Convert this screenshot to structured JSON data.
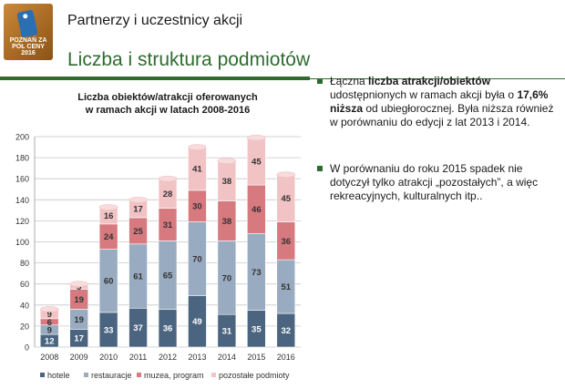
{
  "header": {
    "title": "Partnerzy i uczestnicy akcji",
    "logo_text": "POZNAŃ ZA PÓŁ CENY 2016"
  },
  "section_title": "Liczba i struktura podmiotów",
  "bullets": [
    {
      "segments": [
        {
          "text": "Łączna ",
          "bold": false
        },
        {
          "text": "liczba atrakcji/obiektów",
          "bold": true
        },
        {
          "text": " udostępnionych w ramach akcji była o ",
          "bold": false
        },
        {
          "text": "17,6% niższa",
          "bold": true
        },
        {
          "text": " od ubiegłorocznej. Była niższa również w porównaniu do edycji z lat 2013 i 2014.",
          "bold": false
        }
      ]
    },
    {
      "segments": [
        {
          "text": "W porównaniu do roku 2015 spadek nie dotyczył tylko atrakcji „pozostałych”, a więc rekreacyjnych, kulturalnych itp..",
          "bold": false
        }
      ]
    }
  ],
  "colors": {
    "accent": "#2f6b2f",
    "hotele": "#4b6580",
    "restauracje": "#98abc0",
    "muzea": "#d67a7f",
    "pozostale": "#f2c3c5"
  },
  "chart_data": {
    "type": "bar",
    "stacked": true,
    "title": "Liczba obiektów/atrakcji oferowanych w ramach akcji w latach 2008-2016",
    "categories": [
      "2008",
      "2009",
      "2010",
      "2011",
      "2012",
      "2013",
      "2014",
      "2015",
      "2016"
    ],
    "series": [
      {
        "name": "hotele",
        "values": [
          12,
          17,
          33,
          37,
          36,
          49,
          31,
          35,
          32
        ]
      },
      {
        "name": "restauracje",
        "values": [
          9,
          19,
          60,
          61,
          65,
          70,
          70,
          73,
          51
        ]
      },
      {
        "name": "muzea, program",
        "values": [
          6,
          19,
          24,
          25,
          31,
          30,
          38,
          46,
          36
        ]
      },
      {
        "name": "pozostałe podmioty",
        "values": [
          9,
          5,
          16,
          17,
          28,
          41,
          38,
          45,
          45
        ]
      }
    ],
    "yticks": [
      0,
      20,
      40,
      60,
      80,
      100,
      120,
      140,
      160,
      180,
      200
    ],
    "ylim": [
      0,
      200
    ],
    "legend_position": "bottom",
    "grid": true
  }
}
